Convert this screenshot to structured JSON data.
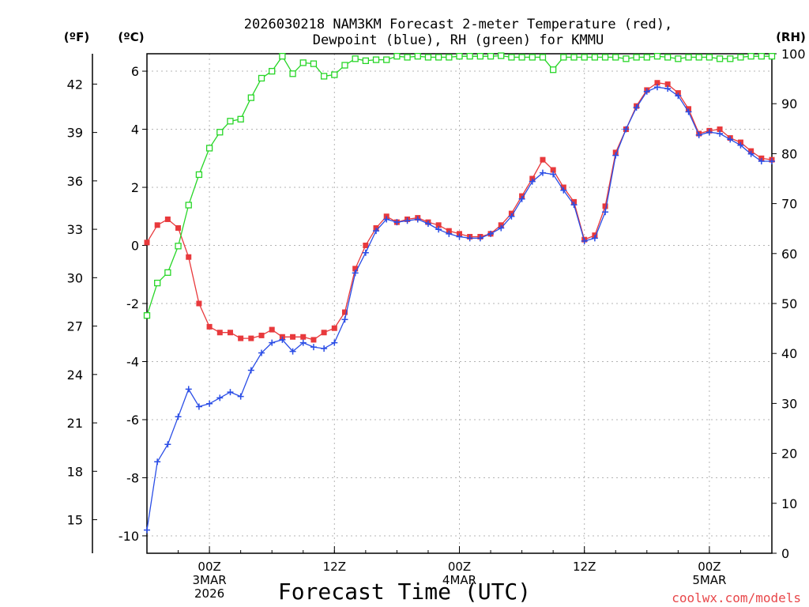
{
  "chart_data": {
    "type": "line",
    "title_lines": [
      "2026030218 NAM3KM Forecast 2-meter Temperature (red),",
      "Dewpoint (blue), RH (green) for KMMU"
    ],
    "xlabel": "Forecast Time (UTC)",
    "units": {
      "left_f": "(ºF)",
      "left_c": "(ºC)",
      "right_rh": "(RH)"
    },
    "y_c": {
      "range": [
        -10.6,
        6.6
      ],
      "ticks": [
        -10,
        -8,
        -6,
        -4,
        -2,
        0,
        2,
        4,
        6
      ],
      "tick_labels": [
        "-10",
        "-8",
        "-6",
        "-4",
        "-2",
        "0",
        "2",
        "4",
        "6"
      ]
    },
    "y_f": {
      "ticks": [
        15,
        18,
        21,
        24,
        27,
        30,
        33,
        36,
        39,
        42
      ],
      "tick_labels": [
        "15",
        "18",
        "21",
        "24",
        "27",
        "30",
        "33",
        "36",
        "39",
        "42"
      ]
    },
    "y_rh": {
      "range": [
        0,
        100
      ],
      "ticks": [
        0,
        10,
        20,
        30,
        40,
        50,
        60,
        70,
        80,
        90,
        100
      ],
      "tick_labels": [
        "0",
        "10",
        "20",
        "30",
        "40",
        "50",
        "60",
        "70",
        "80",
        "90",
        "100"
      ]
    },
    "x_axis": {
      "range_hours_from_start": [
        0,
        60
      ],
      "major_ticks": [
        {
          "hour": 6,
          "lines": [
            "00Z",
            "3MAR",
            "2026"
          ]
        },
        {
          "hour": 18,
          "lines": [
            "12Z"
          ]
        },
        {
          "hour": 30,
          "lines": [
            "00Z",
            "4MAR"
          ]
        },
        {
          "hour": 42,
          "lines": [
            "12Z"
          ]
        },
        {
          "hour": 54,
          "lines": [
            "00Z",
            "5MAR"
          ]
        }
      ]
    },
    "grid": true,
    "series": [
      {
        "name": "2-meter Temperature",
        "axis": "c",
        "color": "#e8393c",
        "marker": "square-filled",
        "x": [
          0,
          1,
          2,
          3,
          4,
          5,
          6,
          7,
          8,
          9,
          10,
          11,
          12,
          13,
          14,
          15,
          16,
          17,
          18,
          19,
          20,
          21,
          22,
          23,
          24,
          25,
          26,
          27,
          28,
          29,
          30,
          31,
          32,
          33,
          34,
          35,
          36,
          37,
          38,
          39,
          40,
          41,
          42,
          43,
          44,
          45,
          46,
          47,
          48,
          49,
          50,
          51,
          52,
          53,
          54,
          55,
          56,
          57,
          58,
          59,
          60
        ],
        "values": [
          0.1,
          0.7,
          0.9,
          0.6,
          -0.4,
          -2.0,
          -2.8,
          -3.0,
          -3.0,
          -3.2,
          -3.2,
          -3.1,
          -2.9,
          -3.15,
          -3.15,
          -3.15,
          -3.25,
          -3.0,
          -2.85,
          -2.3,
          -0.8,
          0.0,
          0.6,
          1.0,
          0.8,
          0.9,
          0.95,
          0.8,
          0.7,
          0.5,
          0.4,
          0.3,
          0.3,
          0.4,
          0.7,
          1.1,
          1.7,
          2.3,
          2.95,
          2.6,
          2.0,
          1.5,
          0.2,
          0.35,
          1.35,
          3.2,
          4.0,
          4.8,
          5.35,
          5.6,
          5.55,
          5.25,
          4.7,
          3.85,
          3.95,
          4.0,
          3.7,
          3.55,
          3.25,
          3.0,
          2.95
        ]
      },
      {
        "name": "Dewpoint",
        "axis": "c",
        "color": "#2a4de6",
        "marker": "plus",
        "x": [
          0,
          1,
          2,
          3,
          4,
          5,
          6,
          7,
          8,
          9,
          10,
          11,
          12,
          13,
          14,
          15,
          16,
          17,
          18,
          19,
          20,
          21,
          22,
          23,
          24,
          25,
          26,
          27,
          28,
          29,
          30,
          31,
          32,
          33,
          34,
          35,
          36,
          37,
          38,
          39,
          40,
          41,
          42,
          43,
          44,
          45,
          46,
          47,
          48,
          49,
          50,
          51,
          52,
          53,
          54,
          55,
          56,
          57,
          58,
          59,
          60
        ],
        "values": [
          -9.8,
          -7.45,
          -6.85,
          -5.9,
          -4.95,
          -5.55,
          -5.45,
          -5.25,
          -5.05,
          -5.2,
          -4.3,
          -3.7,
          -3.35,
          -3.25,
          -3.65,
          -3.35,
          -3.5,
          -3.55,
          -3.35,
          -2.55,
          -0.95,
          -0.25,
          0.5,
          0.9,
          0.8,
          0.85,
          0.9,
          0.75,
          0.55,
          0.4,
          0.3,
          0.25,
          0.25,
          0.4,
          0.6,
          1.0,
          1.6,
          2.2,
          2.5,
          2.45,
          1.9,
          1.4,
          0.15,
          0.25,
          1.15,
          3.1,
          4.0,
          4.75,
          5.3,
          5.45,
          5.4,
          5.15,
          4.6,
          3.8,
          3.9,
          3.85,
          3.65,
          3.45,
          3.15,
          2.9,
          2.9
        ]
      },
      {
        "name": "RH",
        "axis": "rh",
        "color": "#27d627",
        "marker": "square-open",
        "x": [
          0,
          1,
          2,
          3,
          4,
          5,
          6,
          7,
          8,
          9,
          10,
          11,
          12,
          13,
          14,
          15,
          16,
          17,
          18,
          19,
          20,
          21,
          22,
          23,
          24,
          25,
          26,
          27,
          28,
          29,
          30,
          31,
          32,
          33,
          34,
          35,
          36,
          37,
          38,
          39,
          40,
          41,
          42,
          43,
          44,
          45,
          46,
          47,
          48,
          49,
          50,
          51,
          52,
          53,
          54,
          55,
          56,
          57,
          58,
          59,
          60
        ],
        "values": [
          47.6,
          54.1,
          56.2,
          61.5,
          69.7,
          75.8,
          81.1,
          84.3,
          86.5,
          86.9,
          91.2,
          95.1,
          96.5,
          99.5,
          96.0,
          98.2,
          98.0,
          95.5,
          95.8,
          97.7,
          99.0,
          98.6,
          98.8,
          98.8,
          99.5,
          99.3,
          99.5,
          99.3,
          99.3,
          99.3,
          99.5,
          99.5,
          99.5,
          99.5,
          99.6,
          99.3,
          99.3,
          99.3,
          99.3,
          96.8,
          99.3,
          99.3,
          99.3,
          99.3,
          99.3,
          99.3,
          99.0,
          99.3,
          99.3,
          99.5,
          99.3,
          99.0,
          99.3,
          99.3,
          99.3,
          99.0,
          99.0,
          99.3,
          99.5,
          99.5,
          99.5
        ]
      }
    ]
  },
  "watermark": "coolwx.com/models"
}
